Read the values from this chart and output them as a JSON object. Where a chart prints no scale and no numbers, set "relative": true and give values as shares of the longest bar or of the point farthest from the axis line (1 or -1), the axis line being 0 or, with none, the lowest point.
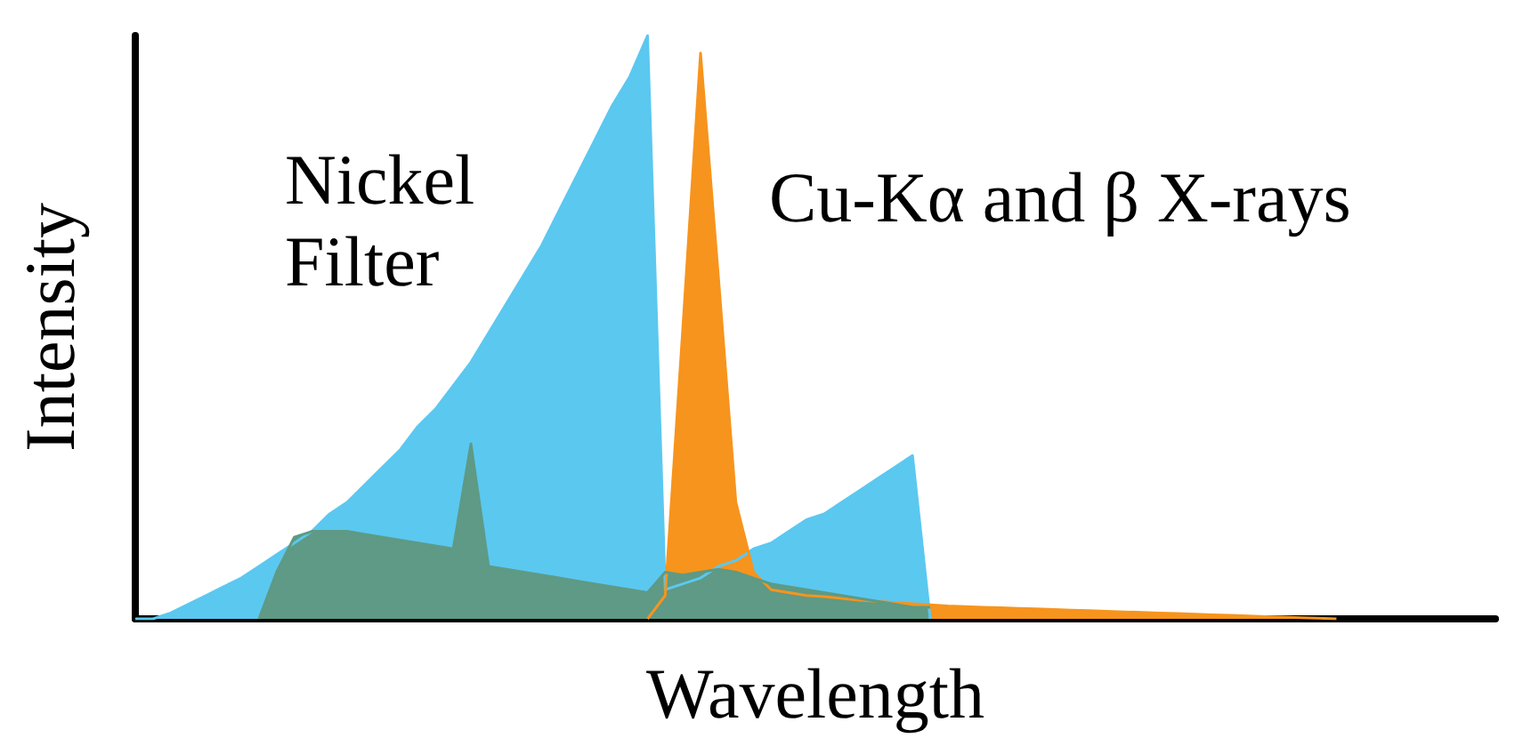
{
  "chart_data": {
    "type": "area",
    "relative": true,
    "xlabel": "Wavelength",
    "ylabel": "Intensity",
    "grid": false,
    "annotations": [
      "Nickel Filter",
      "Cu-Kα and β X-rays"
    ],
    "categories": [
      null,
      null,
      null,
      null,
      null,
      null,
      null,
      null,
      null,
      null,
      null,
      null,
      null,
      null,
      null,
      null,
      null,
      null,
      null,
      null,
      null,
      null,
      null,
      null,
      null,
      null,
      null,
      null,
      null,
      null,
      null,
      null,
      null,
      null,
      null,
      null,
      null,
      null,
      null,
      null,
      null,
      null,
      null,
      null,
      null,
      null,
      null,
      null,
      null,
      null,
      null,
      null,
      null,
      null,
      null,
      null,
      null,
      null,
      null,
      null,
      null,
      null,
      null,
      null,
      null,
      null,
      null,
      null,
      null,
      null,
      null,
      null,
      null,
      null,
      null,
      null,
      null,
      null
    ],
    "series": [
      {
        "color": "#5bc8f0",
        "values": [
          0,
          0,
          0.01,
          0.025,
          0.04,
          0.055,
          0.07,
          0.09,
          0.11,
          0.13,
          0.15,
          0.18,
          0.2,
          0.23,
          0.26,
          0.29,
          0.33,
          0.36,
          0.4,
          0.44,
          0.49,
          0.54,
          0.59,
          0.64,
          0.7,
          0.76,
          0.82,
          0.88,
          0.93,
          1,
          0.05,
          0.06,
          0.07,
          0.09,
          0.1,
          0.12,
          0.13,
          0.15,
          0.17,
          0.18,
          0.2,
          0.22,
          0.24,
          0.26,
          0.28,
          0,
          null,
          null,
          null,
          null,
          null,
          null,
          null,
          null,
          null,
          null,
          null,
          null,
          null,
          null,
          null,
          null,
          null,
          null,
          null,
          null,
          null,
          null,
          null,
          null,
          null,
          null,
          null,
          null,
          null,
          null,
          null,
          null
        ]
      },
      {
        "color": "#f7941d",
        "values": [
          null,
          null,
          null,
          null,
          null,
          null,
          null,
          null,
          null,
          null,
          null,
          null,
          null,
          null,
          null,
          null,
          null,
          null,
          null,
          null,
          null,
          null,
          null,
          null,
          null,
          null,
          null,
          null,
          null,
          0,
          0.04,
          0.5,
          0.97,
          0.59,
          0.2,
          0.08,
          0.05,
          0.045,
          0.04,
          0.038,
          0.035,
          0.032,
          0.03,
          0.028,
          0.026,
          0.024,
          0.022,
          0.021,
          0.02,
          0.019,
          0.018,
          0.017,
          0.016,
          0.015,
          0.014,
          0.013,
          0.012,
          0.011,
          0.01,
          0.009,
          0.008,
          0.007,
          0.006,
          0.005,
          0.004,
          0.003,
          0.002,
          0.001,
          0,
          null,
          null,
          null,
          null,
          null,
          null,
          null,
          null,
          null
        ]
      },
      {
        "color": "#5e9a85",
        "values": [
          null,
          null,
          null,
          null,
          null,
          null,
          null,
          0,
          0.08,
          0.14,
          0.15,
          0.15,
          0.15,
          0.145,
          0.14,
          0.135,
          0.13,
          0.125,
          0.12,
          0.3,
          0.09,
          0.085,
          0.08,
          0.075,
          0.07,
          0.065,
          0.06,
          0.055,
          0.05,
          0.045,
          0.08,
          0.075,
          0.08,
          0.085,
          0.08,
          0.07,
          0.06,
          0.055,
          0.05,
          0.045,
          0.04,
          0.035,
          0.03,
          0.025,
          0.02,
          0.02,
          null,
          null,
          null,
          null,
          null,
          null,
          null,
          null,
          null,
          null,
          null,
          null,
          null,
          null,
          null,
          null,
          null,
          null,
          null,
          null,
          null,
          null,
          null,
          null,
          null,
          null,
          null,
          null,
          null,
          null,
          null,
          null
        ]
      }
    ]
  }
}
